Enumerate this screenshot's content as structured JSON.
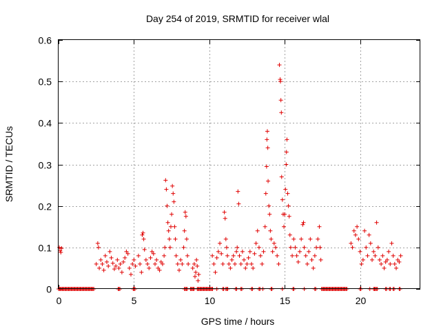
{
  "chart_data": {
    "type": "scatter",
    "title": "Day 254 of 2019, SRMTID for receiver wlal",
    "xlabel": "GPS time / hours",
    "ylabel": "SRMTID / TECUs",
    "xlim": [
      0,
      24
    ],
    "ylim": [
      0,
      0.6
    ],
    "xticks": [
      0,
      5,
      10,
      15,
      20
    ],
    "xtick_labels": [
      "0",
      "5",
      "10",
      "15",
      "20"
    ],
    "yticks": [
      0,
      0.1,
      0.2,
      0.3,
      0.4,
      0.5,
      0.6
    ],
    "ytick_labels": [
      "0",
      "0.1",
      "0.2",
      "0.3",
      "0.4",
      "0.5",
      "0.6"
    ],
    "grid": true,
    "marker": "+",
    "color": "#e00000",
    "series": [
      {
        "name": "SRMTID",
        "points": [
          [
            0.05,
            0.1
          ],
          [
            0.1,
            0.092
          ],
          [
            0.15,
            0.088
          ],
          [
            0.2,
            0.098
          ],
          [
            2.5,
            0.06
          ],
          [
            2.6,
            0.11
          ],
          [
            2.65,
            0.1
          ],
          [
            2.7,
            0.05
          ],
          [
            2.8,
            0.07
          ],
          [
            2.9,
            0.06
          ],
          [
            3.0,
            0.045
          ],
          [
            3.1,
            0.08
          ],
          [
            3.2,
            0.065
          ],
          [
            3.3,
            0.055
          ],
          [
            3.4,
            0.09
          ],
          [
            3.5,
            0.075
          ],
          [
            3.6,
            0.062
          ],
          [
            3.7,
            0.048
          ],
          [
            3.8,
            0.055
          ],
          [
            3.9,
            0.07
          ],
          [
            4.0,
            0.05
          ],
          [
            4.1,
            0.06
          ],
          [
            4.2,
            0.04
          ],
          [
            4.3,
            0.065
          ],
          [
            4.4,
            0.075
          ],
          [
            4.5,
            0.09
          ],
          [
            4.6,
            0.085
          ],
          [
            4.7,
            0.05
          ],
          [
            4.8,
            0.035
          ],
          [
            4.9,
            0.06
          ],
          [
            5.0,
            0.07
          ],
          [
            5.1,
            0.055
          ],
          [
            5.3,
            0.08
          ],
          [
            5.4,
            0.06
          ],
          [
            5.5,
            0.04
          ],
          [
            5.55,
            0.13
          ],
          [
            5.6,
            0.135
          ],
          [
            5.65,
            0.12
          ],
          [
            5.7,
            0.095
          ],
          [
            5.8,
            0.07
          ],
          [
            5.9,
            0.06
          ],
          [
            6.0,
            0.05
          ],
          [
            6.1,
            0.075
          ],
          [
            6.2,
            0.09
          ],
          [
            6.3,
            0.085
          ],
          [
            6.4,
            0.06
          ],
          [
            6.5,
            0.07
          ],
          [
            6.6,
            0.05
          ],
          [
            6.7,
            0.045
          ],
          [
            6.8,
            0.065
          ],
          [
            6.9,
            0.06
          ],
          [
            7.0,
            0.08
          ],
          [
            7.05,
            0.1
          ],
          [
            7.1,
            0.262
          ],
          [
            7.15,
            0.24
          ],
          [
            7.2,
            0.2
          ],
          [
            7.25,
            0.16
          ],
          [
            7.3,
            0.14
          ],
          [
            7.35,
            0.12
          ],
          [
            7.4,
            0.1
          ],
          [
            7.45,
            0.15
          ],
          [
            7.5,
            0.18
          ],
          [
            7.55,
            0.248
          ],
          [
            7.6,
            0.23
          ],
          [
            7.65,
            0.21
          ],
          [
            7.7,
            0.15
          ],
          [
            7.75,
            0.12
          ],
          [
            7.8,
            0.08
          ],
          [
            7.9,
            0.06
          ],
          [
            8.0,
            0.045
          ],
          [
            8.1,
            0.07
          ],
          [
            8.2,
            0.06
          ],
          [
            8.3,
            0.1
          ],
          [
            8.35,
            0.14
          ],
          [
            8.4,
            0.185
          ],
          [
            8.45,
            0.175
          ],
          [
            8.5,
            0.12
          ],
          [
            8.55,
            0.08
          ],
          [
            8.6,
            0.06
          ],
          [
            8.9,
            0.05
          ],
          [
            9.0,
            0.06
          ],
          [
            9.05,
            0.03
          ],
          [
            9.1,
            0.04
          ],
          [
            9.15,
            0.07
          ],
          [
            9.2,
            0.055
          ],
          [
            9.25,
            0.02
          ],
          [
            9.3,
            0.035
          ],
          [
            10.2,
            0.08
          ],
          [
            10.3,
            0.06
          ],
          [
            10.4,
            0.04
          ],
          [
            10.5,
            0.075
          ],
          [
            10.6,
            0.09
          ],
          [
            10.7,
            0.11
          ],
          [
            10.8,
            0.085
          ],
          [
            10.9,
            0.06
          ],
          [
            11.0,
            0.185
          ],
          [
            11.05,
            0.17
          ],
          [
            11.1,
            0.12
          ],
          [
            11.15,
            0.1
          ],
          [
            11.2,
            0.08
          ],
          [
            11.3,
            0.06
          ],
          [
            11.4,
            0.05
          ],
          [
            11.5,
            0.07
          ],
          [
            11.6,
            0.08
          ],
          [
            11.7,
            0.06
          ],
          [
            11.8,
            0.09
          ],
          [
            11.85,
            0.1
          ],
          [
            11.9,
            0.235
          ],
          [
            11.95,
            0.205
          ],
          [
            12.0,
            0.08
          ],
          [
            12.1,
            0.06
          ],
          [
            12.2,
            0.09
          ],
          [
            12.3,
            0.07
          ],
          [
            12.4,
            0.05
          ],
          [
            12.5,
            0.06
          ],
          [
            12.6,
            0.075
          ],
          [
            12.7,
            0.09
          ],
          [
            12.8,
            0.06
          ],
          [
            12.9,
            0.05
          ],
          [
            13.0,
            0.085
          ],
          [
            13.1,
            0.11
          ],
          [
            13.2,
            0.14
          ],
          [
            13.3,
            0.1
          ],
          [
            13.4,
            0.08
          ],
          [
            13.5,
            0.06
          ],
          [
            13.6,
            0.09
          ],
          [
            13.7,
            0.15
          ],
          [
            13.75,
            0.23
          ],
          [
            13.8,
            0.295
          ],
          [
            13.82,
            0.36
          ],
          [
            13.85,
            0.38
          ],
          [
            13.88,
            0.34
          ],
          [
            13.9,
            0.26
          ],
          [
            13.95,
            0.2
          ],
          [
            14.0,
            0.18
          ],
          [
            14.05,
            0.14
          ],
          [
            14.1,
            0.12
          ],
          [
            14.2,
            0.09
          ],
          [
            14.3,
            0.11
          ],
          [
            14.4,
            0.1
          ],
          [
            14.5,
            0.08
          ],
          [
            14.6,
            0.06
          ],
          [
            14.65,
            0.54
          ],
          [
            14.7,
            0.505
          ],
          [
            14.72,
            0.5
          ],
          [
            14.75,
            0.455
          ],
          [
            14.78,
            0.425
          ],
          [
            14.8,
            0.27
          ],
          [
            14.85,
            0.215
          ],
          [
            14.9,
            0.18
          ],
          [
            14.95,
            0.15
          ],
          [
            15.0,
            0.18
          ],
          [
            15.05,
            0.24
          ],
          [
            15.1,
            0.3
          ],
          [
            15.12,
            0.33
          ],
          [
            15.15,
            0.36
          ],
          [
            15.2,
            0.23
          ],
          [
            15.25,
            0.2
          ],
          [
            15.3,
            0.175
          ],
          [
            15.35,
            0.13
          ],
          [
            15.4,
            0.1
          ],
          [
            15.5,
            0.08
          ],
          [
            15.6,
            0.12
          ],
          [
            15.7,
            0.1
          ],
          [
            15.8,
            0.08
          ],
          [
            15.9,
            0.065
          ],
          [
            16.0,
            0.09
          ],
          [
            16.1,
            0.12
          ],
          [
            16.2,
            0.155
          ],
          [
            16.25,
            0.16
          ],
          [
            16.3,
            0.1
          ],
          [
            16.4,
            0.08
          ],
          [
            16.5,
            0.06
          ],
          [
            16.6,
            0.09
          ],
          [
            16.7,
            0.12
          ],
          [
            16.8,
            0.07
          ],
          [
            16.9,
            0.05
          ],
          [
            17.0,
            0.08
          ],
          [
            17.1,
            0.1
          ],
          [
            17.2,
            0.12
          ],
          [
            17.3,
            0.15
          ],
          [
            17.35,
            0.1
          ],
          [
            17.4,
            0.07
          ],
          [
            19.4,
            0.11
          ],
          [
            19.5,
            0.1
          ],
          [
            19.6,
            0.14
          ],
          [
            19.7,
            0.13
          ],
          [
            19.8,
            0.15
          ],
          [
            19.9,
            0.12
          ],
          [
            20.0,
            0.09
          ],
          [
            20.1,
            0.06
          ],
          [
            20.2,
            0.07
          ],
          [
            20.3,
            0.14
          ],
          [
            20.4,
            0.1
          ],
          [
            20.5,
            0.08
          ],
          [
            20.6,
            0.13
          ],
          [
            20.7,
            0.11
          ],
          [
            20.8,
            0.07
          ],
          [
            20.9,
            0.09
          ],
          [
            21.0,
            0.08
          ],
          [
            21.1,
            0.16
          ],
          [
            21.2,
            0.1
          ],
          [
            21.3,
            0.07
          ],
          [
            21.4,
            0.06
          ],
          [
            21.5,
            0.08
          ],
          [
            21.6,
            0.05
          ],
          [
            21.7,
            0.065
          ],
          [
            21.8,
            0.07
          ],
          [
            21.9,
            0.09
          ],
          [
            22.0,
            0.06
          ],
          [
            22.1,
            0.11
          ],
          [
            22.2,
            0.08
          ],
          [
            22.3,
            0.06
          ],
          [
            22.4,
            0.05
          ],
          [
            22.5,
            0.07
          ],
          [
            22.6,
            0.065
          ],
          [
            22.7,
            0.08
          ]
        ],
        "baseline_zero_segments": [
          [
            0.0,
            2.35
          ],
          [
            3.95,
            4.1
          ],
          [
            4.95,
            5.1
          ],
          [
            8.35,
            8.55
          ],
          [
            8.75,
            9.0
          ],
          [
            9.2,
            10.25
          ],
          [
            10.5,
            10.55
          ],
          [
            10.9,
            11.0
          ],
          [
            11.1,
            11.25
          ],
          [
            11.75,
            11.85
          ],
          [
            12.1,
            12.2
          ],
          [
            12.8,
            12.9
          ],
          [
            13.3,
            13.4
          ],
          [
            13.55,
            13.6
          ],
          [
            14.1,
            14.2
          ],
          [
            14.85,
            14.9
          ],
          [
            15.55,
            15.65
          ],
          [
            16.3,
            16.35
          ],
          [
            17.0,
            17.1
          ],
          [
            17.45,
            19.15
          ],
          [
            20.0,
            20.1
          ],
          [
            20.65,
            20.7
          ],
          [
            20.9,
            21.15
          ],
          [
            21.7,
            21.8
          ],
          [
            21.95,
            22.05
          ],
          [
            22.2,
            22.3
          ],
          [
            22.6,
            22.7
          ]
        ]
      }
    ]
  }
}
